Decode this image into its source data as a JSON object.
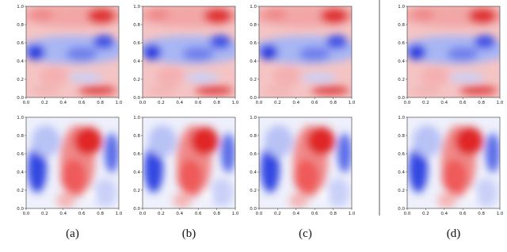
{
  "panels": [
    {
      "label": "(a)"
    },
    {
      "label": "(b)"
    },
    {
      "label": "(c)"
    },
    {
      "label": "(d)"
    }
  ],
  "axis_ticks": {
    "x": [
      "0.0",
      "0.2",
      "0.4",
      "0.6",
      "0.8",
      "1.0"
    ],
    "y": [
      "0.0",
      "0.2",
      "0.4",
      "0.6",
      "0.8",
      "1.0"
    ]
  }
}
